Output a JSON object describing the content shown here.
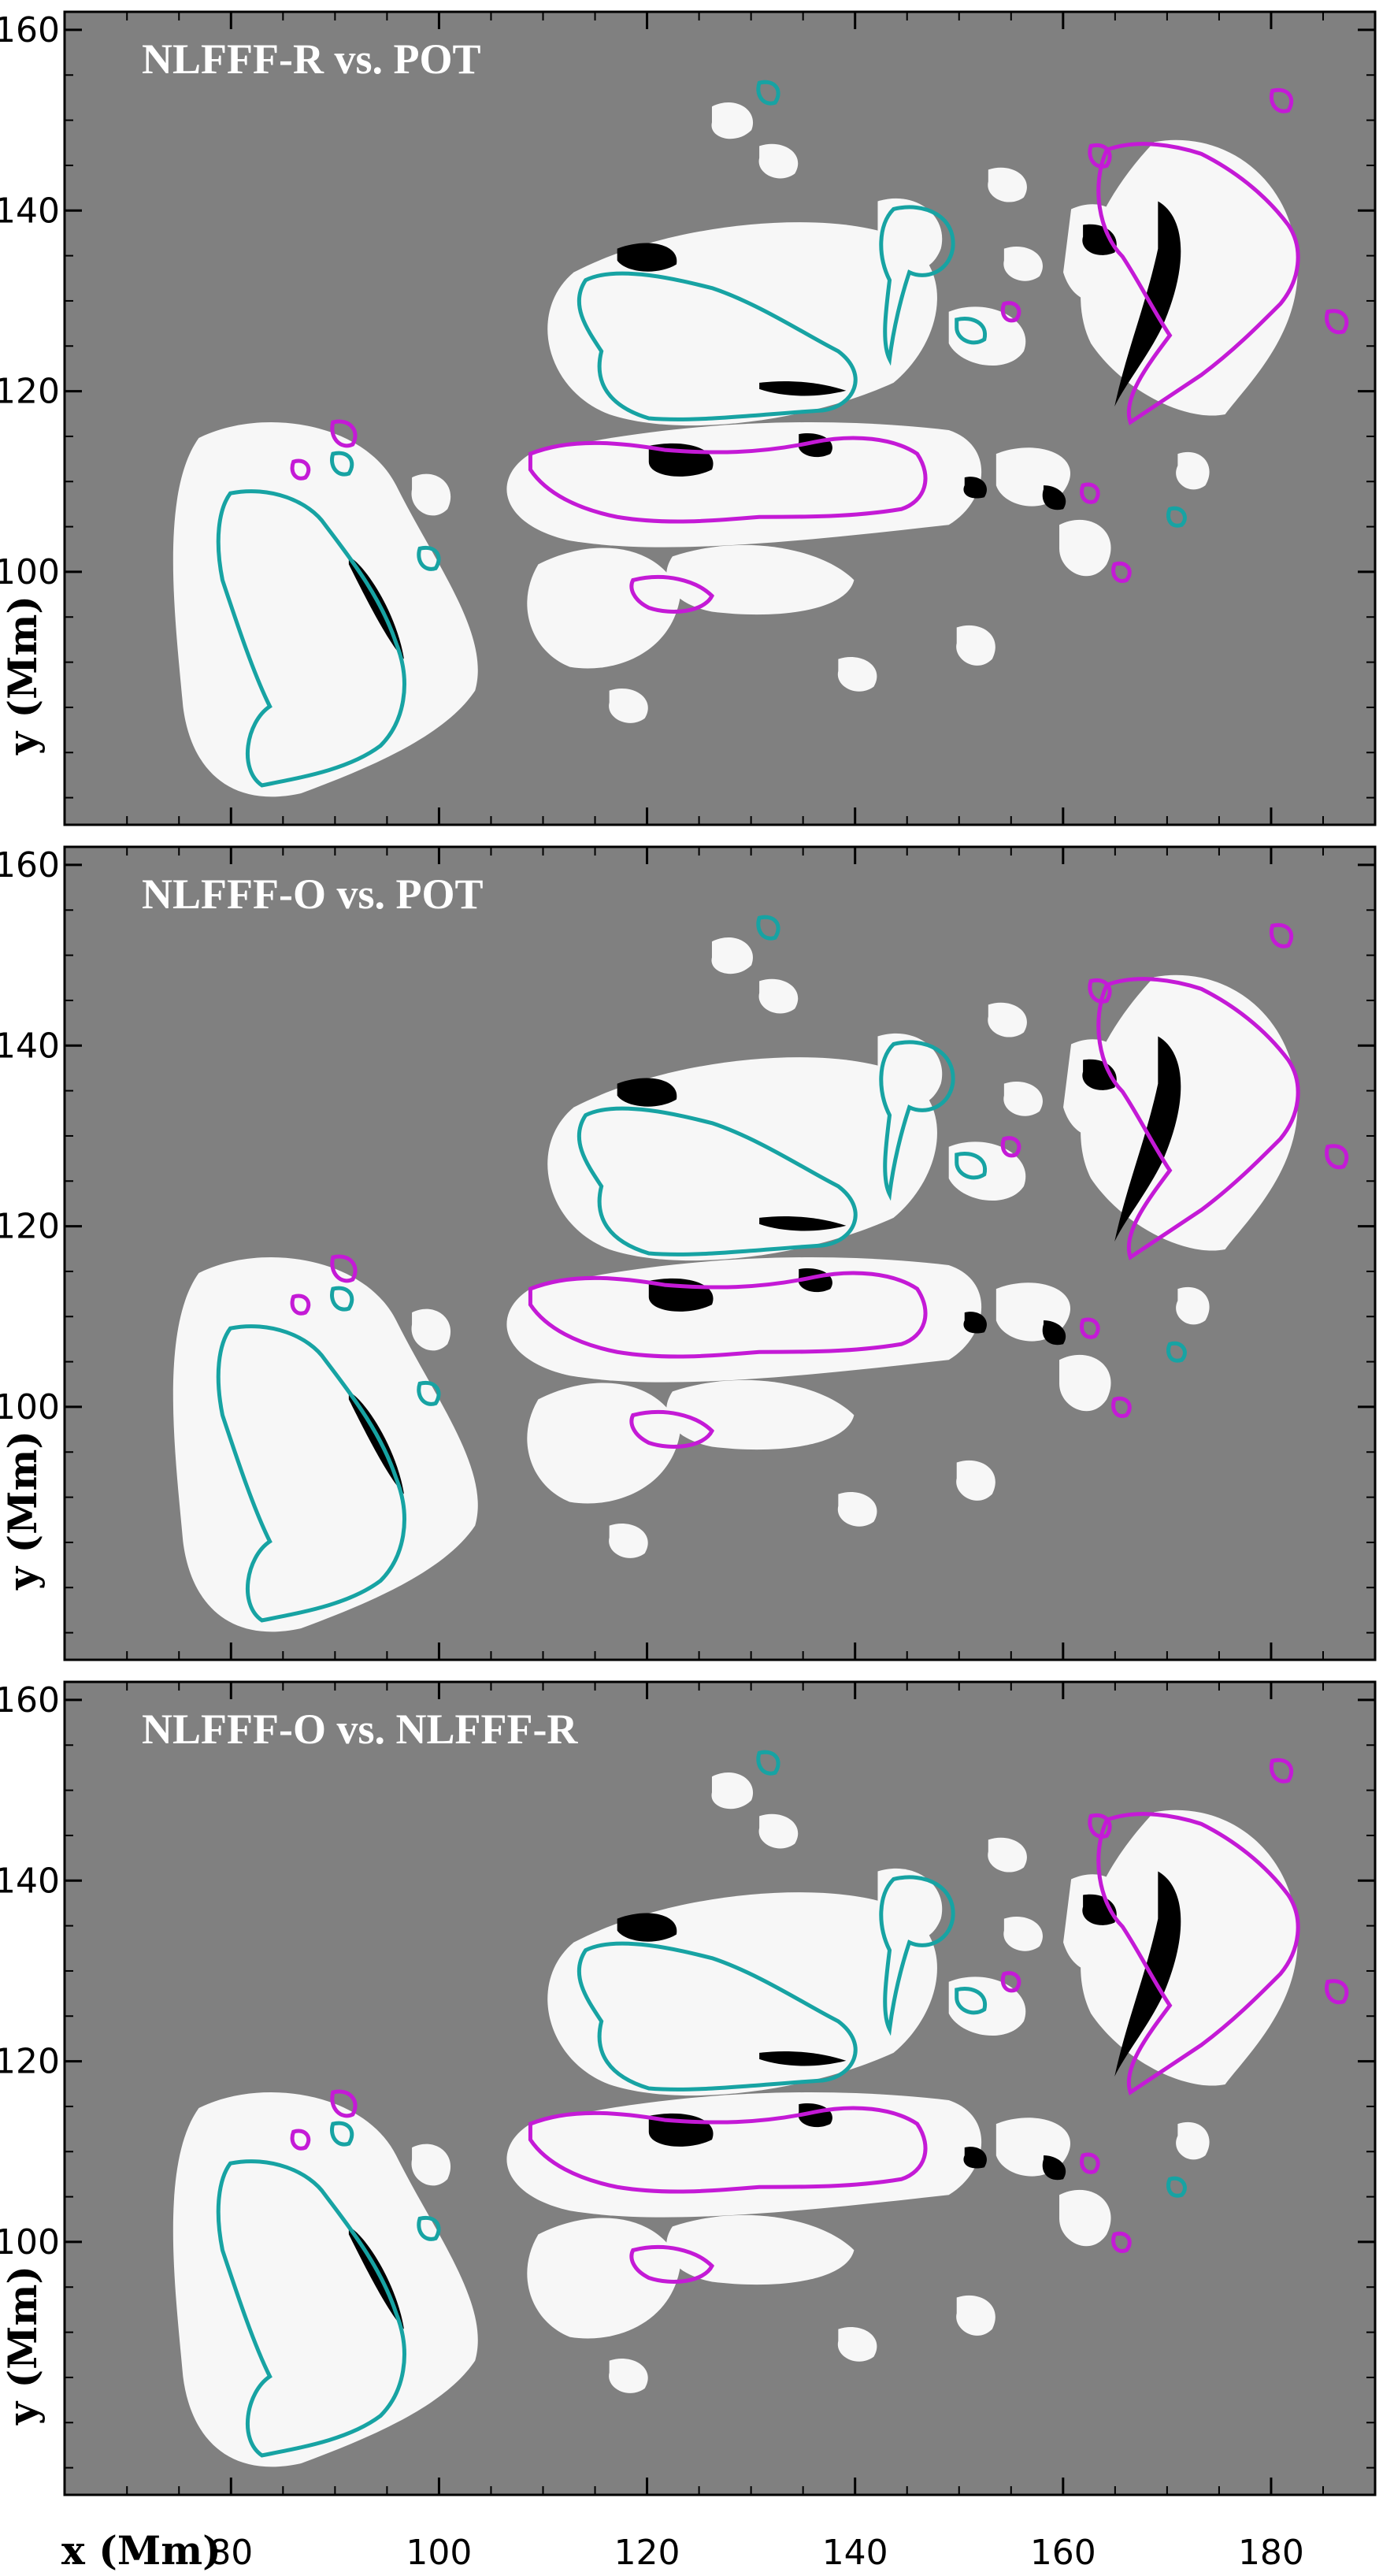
{
  "colors": {
    "background": "#808080",
    "positive": "#f7f7f7",
    "negative": "#000000",
    "contour_cyan": "#17a3a3",
    "contour_magenta": "#c41ad6"
  },
  "xaxis": {
    "label": "x (Mm)",
    "ticks": [
      80,
      100,
      120,
      140,
      160,
      180
    ],
    "range": [
      64,
      190
    ]
  },
  "yaxis": {
    "label": "y (Mm)",
    "ticks": [
      100,
      120,
      140,
      160
    ],
    "range": [
      72,
      162
    ]
  },
  "chart_data": [
    {
      "type": "heatmap",
      "title": "NLFFF-R vs. POT",
      "xlabel": "",
      "ylabel": "y (Mm)",
      "xlim": [
        64,
        190
      ],
      "ylim": [
        72,
        162
      ],
      "grid": false
    },
    {
      "type": "heatmap",
      "title": "NLFFF-O vs. POT",
      "xlabel": "",
      "ylabel": "y (Mm)",
      "xlim": [
        64,
        190
      ],
      "ylim": [
        72,
        162
      ],
      "grid": false
    },
    {
      "type": "heatmap",
      "title": "NLFFF-O vs. NLFFF-R",
      "xlabel": "x (Mm)",
      "ylabel": "y (Mm)",
      "xlim": [
        64,
        190
      ],
      "ylim": [
        72,
        162
      ],
      "grid": false
    }
  ]
}
